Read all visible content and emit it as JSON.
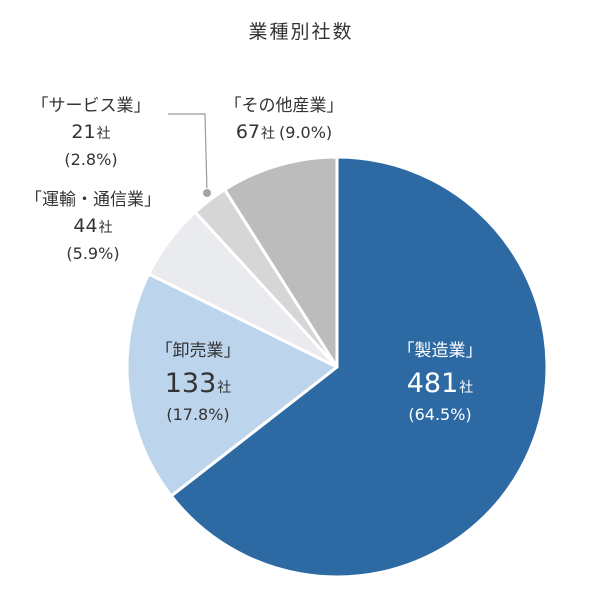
{
  "chart_data": {
    "type": "pie",
    "title": "業種別社数",
    "slices": [
      {
        "name": "製造業",
        "label": "「製造業」",
        "count": 481,
        "count_text": "481",
        "unit": "社",
        "percent": 64.5,
        "percent_text": "(64.5%)",
        "color": "#2d6aa3"
      },
      {
        "name": "卸売業",
        "label": "「卸売業」",
        "count": 133,
        "count_text": "133",
        "unit": "社",
        "percent": 17.8,
        "percent_text": "(17.8%)",
        "color": "#bdd5ec"
      },
      {
        "name": "運輸・通信業",
        "label": "「運輸・通信業」",
        "count": 44,
        "count_text": "44",
        "unit": "社",
        "percent": 5.9,
        "percent_text": "(5.9%)",
        "color": "#e9ebee"
      },
      {
        "name": "サービス業",
        "label": "「サービス業」",
        "count": 21,
        "count_text": "21",
        "unit": "社",
        "percent": 2.8,
        "percent_text": "(2.8%)",
        "color": "#d6d6d6"
      },
      {
        "name": "その他産業",
        "label": "「その他産業」",
        "count": 67,
        "count_text": "67",
        "unit": "社",
        "percent": 9.0,
        "percent_text": "(9.0%)",
        "color": "#bcbcbc"
      }
    ],
    "start_angle": "12 o'clock",
    "direction": "clockwise",
    "legend": "none"
  }
}
